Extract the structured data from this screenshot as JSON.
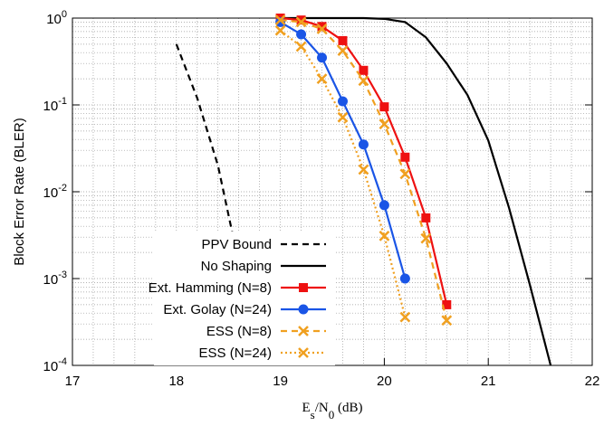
{
  "chart_data": {
    "type": "line",
    "xlabel": "E_s/N_0 (dB)",
    "ylabel": "Block Error Rate (BLER)",
    "xlim": [
      17,
      22
    ],
    "xticks": [
      17,
      18,
      19,
      20,
      21,
      22
    ],
    "ylim": [
      0.0001,
      1
    ],
    "log_y": true,
    "grid": true,
    "yticks": [
      {
        "value": 0.0001,
        "label": "10^-4"
      },
      {
        "value": 0.001,
        "label": "10^-3"
      },
      {
        "value": 0.01,
        "label": "10^-2"
      },
      {
        "value": 0.1,
        "label": "10^-1"
      },
      {
        "value": 1,
        "label": "10^0"
      }
    ],
    "legend": "lower center",
    "series": [
      {
        "name": "PPV Bound",
        "color": "#000000",
        "dash": "dashed",
        "marker": "none",
        "x": [
          18.0,
          18.2,
          18.4,
          18.6,
          18.72
        ],
        "values": [
          0.5,
          0.12,
          0.02,
          0.0015,
          0.0001
        ]
      },
      {
        "name": "No Shaping",
        "color": "#000000",
        "dash": "solid",
        "marker": "none",
        "x": [
          19.0,
          19.8,
          20.0,
          20.2,
          20.4,
          20.6,
          20.8,
          21.0,
          21.2,
          21.4,
          21.6
        ],
        "values": [
          1.0,
          1.0,
          0.98,
          0.9,
          0.6,
          0.3,
          0.13,
          0.039,
          0.0065,
          0.00085,
          0.0001
        ]
      },
      {
        "name": "Ext. Hamming (N=8)",
        "color": "#ee1111",
        "dash": "solid",
        "marker": "square",
        "x": [
          19.0,
          19.2,
          19.4,
          19.6,
          19.8,
          20.0,
          20.2,
          20.4,
          20.6
        ],
        "values": [
          1.0,
          0.95,
          0.8,
          0.55,
          0.25,
          0.095,
          0.025,
          0.005,
          0.0005
        ]
      },
      {
        "name": "Ext. Golay (N=24)",
        "color": "#1a55e6",
        "dash": "solid",
        "marker": "circle",
        "x": [
          19.0,
          19.2,
          19.4,
          19.6,
          19.8,
          20.0,
          20.2
        ],
        "values": [
          0.9,
          0.65,
          0.35,
          0.11,
          0.035,
          0.007,
          0.001
        ]
      },
      {
        "name": "ESS (N=8)",
        "color": "#f0a020",
        "dash": "dashed",
        "marker": "x",
        "x": [
          19.0,
          19.2,
          19.4,
          19.6,
          19.8,
          20.0,
          20.2,
          20.4,
          20.6
        ],
        "values": [
          0.95,
          0.9,
          0.75,
          0.42,
          0.19,
          0.06,
          0.016,
          0.0029,
          0.00033
        ]
      },
      {
        "name": "ESS (N=24)",
        "color": "#f0a020",
        "dash": "dotted",
        "marker": "x",
        "x": [
          19.0,
          19.2,
          19.4,
          19.6,
          19.8,
          20.0,
          20.2
        ],
        "values": [
          0.72,
          0.47,
          0.2,
          0.072,
          0.018,
          0.0031,
          0.00036
        ]
      }
    ]
  }
}
